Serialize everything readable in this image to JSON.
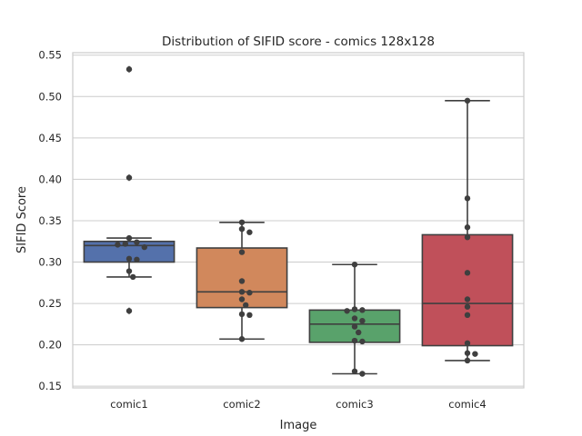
{
  "chart_data": {
    "type": "box",
    "title": "Distribution of SIFID score - comics 128x128",
    "xlabel": "Image",
    "ylabel": "SIFID Score",
    "ylim": [
      0.148,
      0.553
    ],
    "yticks": [
      0.15,
      0.2,
      0.25,
      0.3,
      0.35,
      0.4,
      0.45,
      0.5,
      0.55
    ],
    "ytick_labels": [
      "0.15",
      "0.20",
      "0.25",
      "0.30",
      "0.35",
      "0.40",
      "0.45",
      "0.50",
      "0.55"
    ],
    "grid": true,
    "categories": [
      "comic1",
      "comic2",
      "comic3",
      "comic4"
    ],
    "boxes": [
      {
        "name": "comic1",
        "color": "#5471ab",
        "whisker_low": 0.282,
        "q1": 0.3,
        "median": 0.32,
        "q3": 0.325,
        "whisker_high": 0.329,
        "fliers": [
          0.533,
          0.402,
          0.241
        ],
        "points": [
          0.533,
          0.402,
          0.329,
          0.324,
          0.322,
          0.321,
          0.318,
          0.304,
          0.303,
          0.289,
          0.282,
          0.241
        ]
      },
      {
        "name": "comic2",
        "color": "#d1885c",
        "whisker_low": 0.207,
        "q1": 0.245,
        "median": 0.264,
        "q3": 0.317,
        "whisker_high": 0.348,
        "fliers": [],
        "points": [
          0.348,
          0.34,
          0.336,
          0.312,
          0.277,
          0.264,
          0.263,
          0.255,
          0.248,
          0.237,
          0.236,
          0.207
        ]
      },
      {
        "name": "comic3",
        "color": "#59a26b",
        "whisker_low": 0.165,
        "q1": 0.203,
        "median": 0.225,
        "q3": 0.242,
        "whisker_high": 0.297,
        "fliers": [],
        "points": [
          0.297,
          0.243,
          0.242,
          0.241,
          0.232,
          0.229,
          0.222,
          0.215,
          0.205,
          0.204,
          0.168,
          0.165
        ]
      },
      {
        "name": "comic4",
        "color": "#c0505a",
        "whisker_low": 0.181,
        "q1": 0.199,
        "median": 0.25,
        "q3": 0.333,
        "whisker_high": 0.495,
        "fliers": [],
        "points": [
          0.495,
          0.377,
          0.342,
          0.33,
          0.287,
          0.255,
          0.246,
          0.236,
          0.202,
          0.19,
          0.189,
          0.181
        ]
      }
    ]
  }
}
